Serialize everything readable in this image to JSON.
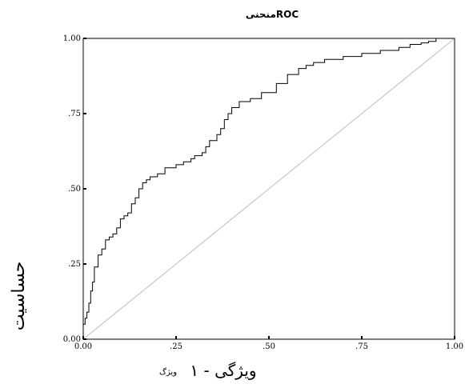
{
  "chart_data": {
    "type": "line",
    "title": "منحنیROC",
    "xlabel": "ویژگی - ۱",
    "xlabel_small": "ویژگ",
    "ylabel": "حساسیت",
    "xlim": [
      0,
      1
    ],
    "ylim": [
      0,
      1
    ],
    "x_ticks": [
      0.0,
      0.25,
      0.5,
      0.75,
      1.0
    ],
    "x_tick_labels": [
      "0.00",
      ".25",
      ".50",
      ".75",
      "1.00"
    ],
    "y_ticks": [
      0.0,
      0.25,
      0.5,
      0.75,
      1.0
    ],
    "y_tick_labels": [
      "0.00",
      ".25",
      ".50",
      ".75",
      "1.00"
    ],
    "grid": false,
    "colors": {
      "curve": "#000000",
      "reference": "#bdbdbd",
      "frame": "#000000"
    },
    "series": [
      {
        "x": [
          0.0,
          0.0,
          0.005,
          0.005,
          0.01,
          0.01,
          0.015,
          0.015,
          0.02,
          0.02,
          0.025,
          0.025,
          0.03,
          0.03,
          0.04,
          0.04,
          0.05,
          0.05,
          0.06,
          0.06,
          0.07,
          0.07,
          0.08,
          0.08,
          0.09,
          0.09,
          0.1,
          0.1,
          0.11,
          0.11,
          0.12,
          0.12,
          0.13,
          0.13,
          0.14,
          0.14,
          0.15,
          0.15,
          0.16,
          0.16,
          0.17,
          0.17,
          0.18,
          0.18,
          0.2,
          0.2,
          0.22,
          0.22,
          0.25,
          0.25,
          0.27,
          0.27,
          0.29,
          0.29,
          0.3,
          0.3,
          0.32,
          0.32,
          0.33,
          0.33,
          0.34,
          0.34,
          0.36,
          0.36,
          0.37,
          0.37,
          0.38,
          0.38,
          0.39,
          0.39,
          0.4,
          0.4,
          0.42,
          0.42,
          0.45,
          0.45,
          0.48,
          0.48,
          0.52,
          0.52,
          0.55,
          0.55,
          0.58,
          0.58,
          0.6,
          0.6,
          0.62,
          0.62,
          0.65,
          0.65,
          0.7,
          0.7,
          0.75,
          0.75,
          0.8,
          0.8,
          0.85,
          0.85,
          0.88,
          0.88,
          0.91,
          0.91,
          0.93,
          0.93,
          0.95,
          0.95,
          1.0
        ],
        "y": [
          0.0,
          0.05,
          0.05,
          0.07,
          0.07,
          0.09,
          0.09,
          0.12,
          0.12,
          0.16,
          0.16,
          0.19,
          0.19,
          0.24,
          0.24,
          0.28,
          0.28,
          0.3,
          0.3,
          0.33,
          0.33,
          0.34,
          0.34,
          0.35,
          0.35,
          0.37,
          0.37,
          0.4,
          0.4,
          0.41,
          0.41,
          0.42,
          0.42,
          0.45,
          0.45,
          0.47,
          0.47,
          0.5,
          0.5,
          0.52,
          0.52,
          0.53,
          0.53,
          0.54,
          0.54,
          0.55,
          0.55,
          0.57,
          0.57,
          0.58,
          0.58,
          0.59,
          0.59,
          0.6,
          0.6,
          0.61,
          0.61,
          0.62,
          0.62,
          0.64,
          0.64,
          0.66,
          0.66,
          0.68,
          0.68,
          0.7,
          0.7,
          0.73,
          0.73,
          0.75,
          0.75,
          0.77,
          0.77,
          0.79,
          0.79,
          0.8,
          0.8,
          0.82,
          0.82,
          0.85,
          0.85,
          0.88,
          0.88,
          0.9,
          0.9,
          0.91,
          0.91,
          0.92,
          0.92,
          0.93,
          0.93,
          0.94,
          0.94,
          0.95,
          0.95,
          0.96,
          0.96,
          0.97,
          0.97,
          0.98,
          0.98,
          0.985,
          0.985,
          0.99,
          0.99,
          1.0,
          1.0
        ]
      }
    ],
    "reference_line": {
      "x": [
        0,
        1
      ],
      "y": [
        0,
        1
      ]
    }
  }
}
